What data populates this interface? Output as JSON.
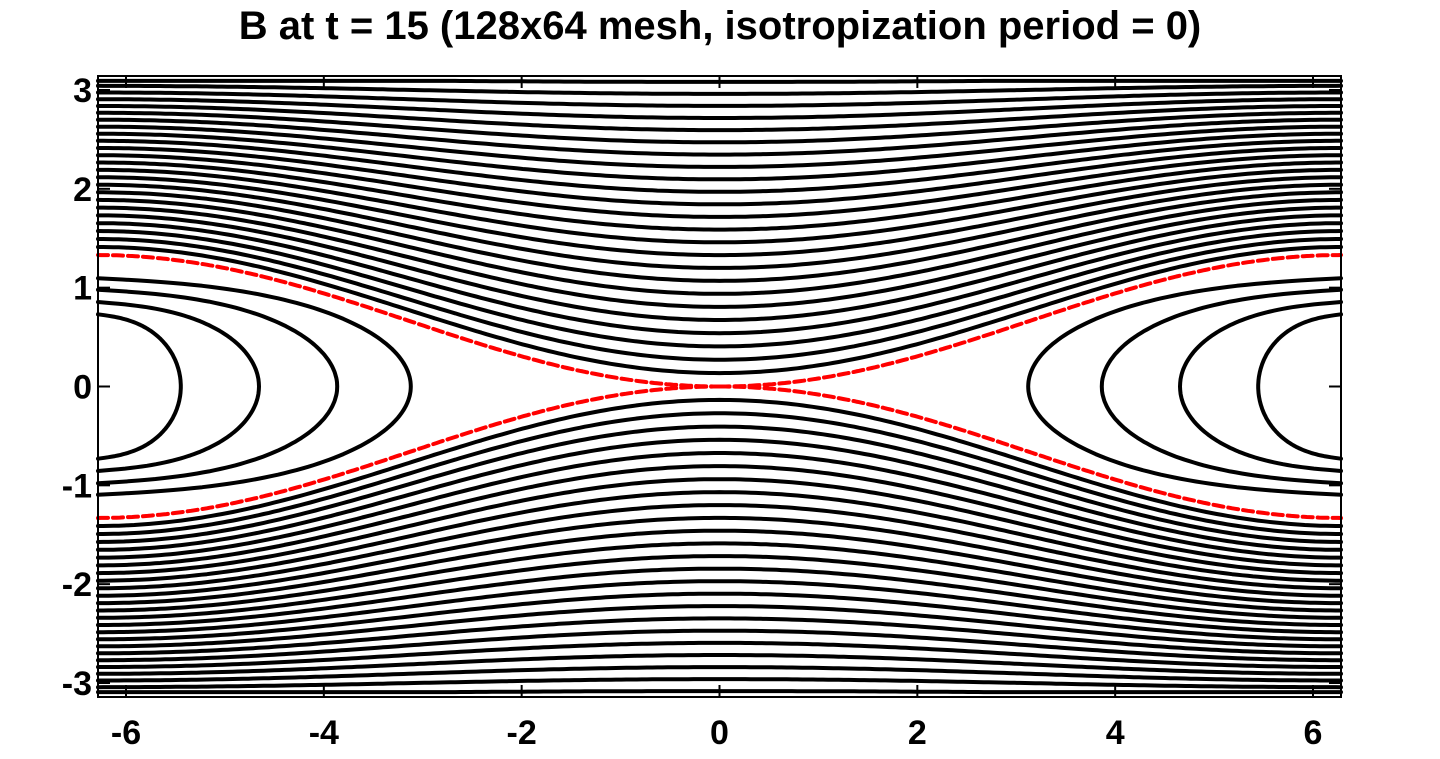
{
  "chart_data": {
    "type": "contour",
    "title": "B at t = 15 (128x64 mesh, isotropization period = 0)",
    "xlim": [
      -6.283,
      6.283
    ],
    "ylim": [
      -3.1416,
      3.1416
    ],
    "xticks": [
      -6,
      -4,
      -2,
      0,
      2,
      4,
      6
    ],
    "yticks": [
      -3,
      -2,
      -1,
      0,
      1,
      2,
      3
    ],
    "xtick_labels": [
      "-6",
      "-4",
      "-2",
      "0",
      "2",
      "4",
      "6"
    ],
    "ytick_labels": [
      "-3",
      "-2",
      "-1",
      "0",
      "1",
      "2",
      "3"
    ],
    "field_lines": {
      "color": "#000000",
      "outer_offsets": [
        0.1,
        0.2,
        0.3,
        0.4,
        0.5,
        0.6,
        0.7,
        0.8,
        0.9,
        1.0,
        1.1,
        1.2,
        1.3,
        1.4,
        1.5,
        1.6,
        1.7,
        1.8,
        1.9,
        2.0,
        2.1,
        2.2,
        2.3,
        2.4
      ],
      "island_offsets": [
        0.18,
        0.35,
        0.52,
        0.68
      ],
      "island_centers": [
        -6.283,
        6.283
      ]
    },
    "separatrix": {
      "color": "#ff0000",
      "style": "dashed",
      "edge_y": 1.33,
      "center_y": 0.0
    }
  }
}
